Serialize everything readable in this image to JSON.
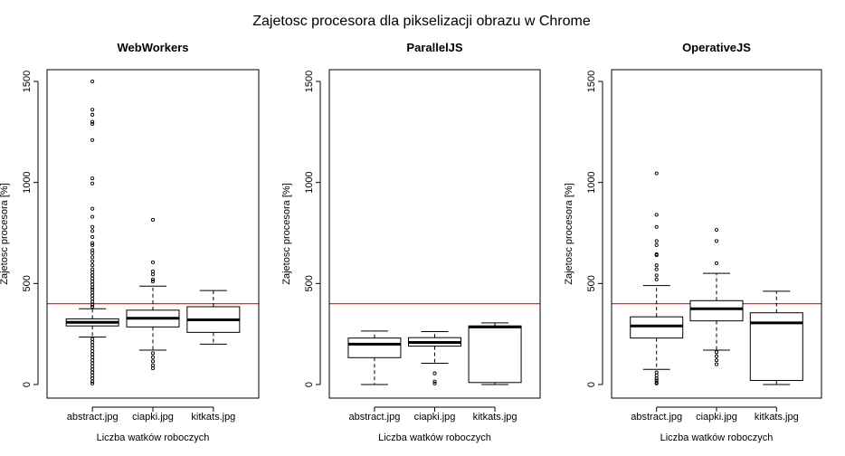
{
  "figure": {
    "title": "Zajetosc procesora dla pikselizacji obrazu w Chrome"
  },
  "colors": {
    "reference_line": "#ff0000",
    "box": "#000000"
  },
  "chart_data": [
    {
      "type": "box",
      "title": "WebWorkers",
      "xlabel": "Liczba watków roboczych",
      "ylabel": "Zajetosc procesora [%]",
      "ylim": [
        0,
        1500
      ],
      "yticks": [
        "0",
        "500",
        "1000",
        "1500"
      ],
      "reference_line": 400,
      "categories": [
        "abstract.jpg",
        "ciapki.jpg",
        "kitkats.jpg"
      ],
      "boxes": [
        {
          "category": "abstract.jpg",
          "min": 235,
          "q1": 290,
          "median": 308,
          "q3": 325,
          "max": 375,
          "outliers": [
            1500,
            1360,
            1335,
            1300,
            1290,
            1210,
            1020,
            995,
            870,
            830,
            780,
            760,
            730,
            700,
            690,
            665,
            650,
            630,
            610,
            590,
            570,
            555,
            540,
            525,
            510,
            495,
            480,
            470,
            455,
            440,
            425,
            410,
            395,
            385,
            225,
            210,
            195,
            180,
            165,
            150,
            135,
            120,
            105,
            90,
            75,
            60,
            45,
            30,
            15,
            5
          ]
        },
        {
          "category": "ciapki.jpg",
          "min": 170,
          "q1": 285,
          "median": 328,
          "q3": 368,
          "max": 487,
          "outliers": [
            815,
            605,
            560,
            545,
            520,
            510,
            155,
            135,
            115,
            95,
            80
          ]
        },
        {
          "category": "kitkats.jpg",
          "min": 200,
          "q1": 258,
          "median": 320,
          "q3": 385,
          "max": 465,
          "outliers": []
        }
      ]
    },
    {
      "type": "box",
      "title": "ParallelJS",
      "xlabel": "Liczba watków roboczych",
      "ylabel": "Zajetosc procesora [%]",
      "ylim": [
        0,
        1500
      ],
      "yticks": [
        "0",
        "500",
        "1000",
        "1500"
      ],
      "reference_line": 400,
      "categories": [
        "abstract.jpg",
        "ciapki.jpg",
        "kitkats.jpg"
      ],
      "boxes": [
        {
          "category": "abstract.jpg",
          "min": 0,
          "q1": 133,
          "median": 200,
          "q3": 230,
          "max": 265,
          "outliers": []
        },
        {
          "category": "ciapki.jpg",
          "min": 105,
          "q1": 190,
          "median": 208,
          "q3": 232,
          "max": 262,
          "outliers": [
            55,
            15,
            5
          ]
        },
        {
          "category": "kitkats.jpg",
          "min": 0,
          "q1": 10,
          "median": 285,
          "q3": 290,
          "max": 305,
          "outliers": []
        }
      ]
    },
    {
      "type": "box",
      "title": "OperativeJS",
      "xlabel": "Liczba watków roboczych",
      "ylabel": "Zajetosc procesora [%]",
      "ylim": [
        0,
        1500
      ],
      "yticks": [
        "0",
        "500",
        "1000",
        "1500"
      ],
      "reference_line": 400,
      "categories": [
        "abstract.jpg",
        "ciapki.jpg",
        "kitkats.jpg"
      ],
      "boxes": [
        {
          "category": "abstract.jpg",
          "min": 75,
          "q1": 230,
          "median": 290,
          "q3": 335,
          "max": 490,
          "outliers": [
            1045,
            840,
            780,
            710,
            690,
            645,
            640,
            590,
            570,
            540,
            520,
            60,
            45,
            30,
            20,
            10,
            5
          ]
        },
        {
          "category": "ciapki.jpg",
          "min": 170,
          "q1": 315,
          "median": 375,
          "q3": 415,
          "max": 550,
          "outliers": [
            765,
            710,
            600,
            160,
            140,
            120,
            100
          ]
        },
        {
          "category": "kitkats.jpg",
          "min": 0,
          "q1": 20,
          "median": 305,
          "q3": 355,
          "max": 462,
          "outliers": []
        }
      ]
    }
  ]
}
